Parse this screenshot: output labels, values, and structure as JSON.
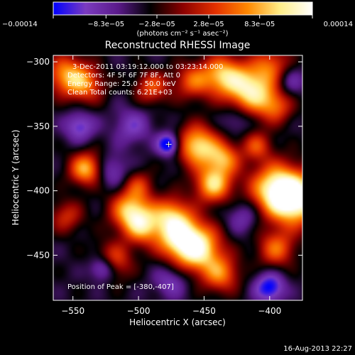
{
  "chart_data": {
    "type": "heatmap",
    "title": "Reconstructed RHESSI Image",
    "xlabel": "Heliocentric X (arcsec)",
    "ylabel": "Heliocentric Y (arcsec)",
    "xlim": [
      -565,
      -375
    ],
    "ylim": [
      -485,
      -295
    ],
    "x_ticks": [
      "−550",
      "−500",
      "−450",
      "−400"
    ],
    "x_tick_values": [
      -550,
      -500,
      -450,
      -400
    ],
    "y_ticks": [
      "−300",
      "−350",
      "−400",
      "−450"
    ],
    "y_tick_values": [
      -300,
      -350,
      -400,
      -450
    ],
    "colorbar": {
      "tick_labels": [
        "−0.00014",
        "−8.3e−05",
        "−2.8e−05",
        "2.8e−05",
        "8.3e−05",
        "0.00014"
      ],
      "tick_values": [
        -0.00014,
        -8.3e-05,
        -2.8e-05,
        2.8e-05,
        8.3e-05,
        0.00014
      ],
      "range": [
        -0.00014,
        0.00014
      ],
      "units": "(photons cm⁻² s⁻¹ asec⁻²)",
      "colors": [
        "#0000ff",
        "#7b3bbf",
        "#5a1a8a",
        "#000000",
        "#8b0000",
        "#e33000",
        "#ff8800",
        "#ffee88",
        "#ffffff"
      ]
    },
    "annotations": {
      "time": "3-Dec-2011 03:19:12.000 to 03:23:14.000",
      "detectors": "Detectors: 4F 5F 6F 7F 8F, Att 0",
      "energy": "Energy Range: 25.0 - 50.0 keV",
      "clean": "Clean     Total counts: 6.21E+03",
      "peak": "Position of Peak = [-380,-407]"
    },
    "peak": {
      "x": -380,
      "y": -407
    },
    "marker": {
      "x": -477,
      "y": -364
    },
    "blobs": [
      {
        "x": -380,
        "y": -407,
        "v": 1.0,
        "s": 14
      },
      {
        "x": -396,
        "y": -398,
        "v": 0.8,
        "s": 14
      },
      {
        "x": -414,
        "y": -322,
        "v": 0.9,
        "s": 13
      },
      {
        "x": -436,
        "y": -310,
        "v": 0.7,
        "s": 11
      },
      {
        "x": -459,
        "y": -315,
        "v": 0.5,
        "s": 10
      },
      {
        "x": -398,
        "y": -302,
        "v": 0.45,
        "s": 10
      },
      {
        "x": -455,
        "y": -365,
        "v": 0.85,
        "s": 11
      },
      {
        "x": -443,
        "y": -395,
        "v": 0.8,
        "s": 10
      },
      {
        "x": -435,
        "y": -375,
        "v": 0.6,
        "s": 9
      },
      {
        "x": -455,
        "y": -445,
        "v": 0.9,
        "s": 13
      },
      {
        "x": -470,
        "y": -435,
        "v": 0.75,
        "s": 12
      },
      {
        "x": -475,
        "y": -418,
        "v": 0.55,
        "s": 10
      },
      {
        "x": -437,
        "y": -465,
        "v": 0.55,
        "s": 10
      },
      {
        "x": -506,
        "y": -415,
        "v": 0.75,
        "s": 11
      },
      {
        "x": -497,
        "y": -428,
        "v": 0.6,
        "s": 10
      },
      {
        "x": -540,
        "y": -383,
        "v": 0.75,
        "s": 9
      },
      {
        "x": -555,
        "y": -310,
        "v": 0.65,
        "s": 11
      },
      {
        "x": -540,
        "y": -318,
        "v": 0.5,
        "s": 10
      },
      {
        "x": -490,
        "y": -320,
        "v": 0.5,
        "s": 9
      },
      {
        "x": -520,
        "y": -455,
        "v": 0.55,
        "s": 10
      },
      {
        "x": -395,
        "y": -445,
        "v": 0.55,
        "s": 10
      },
      {
        "x": -395,
        "y": -335,
        "v": 0.45,
        "s": 9
      },
      {
        "x": -410,
        "y": -365,
        "v": 0.45,
        "s": 8
      },
      {
        "x": -500,
        "y": -395,
        "v": 0.35,
        "s": 8
      },
      {
        "x": -555,
        "y": -420,
        "v": 0.4,
        "s": 9
      },
      {
        "x": -477,
        "y": -364,
        "v": -1.0,
        "s": 6
      },
      {
        "x": -527,
        "y": -460,
        "v": -0.85,
        "s": 7
      },
      {
        "x": -400,
        "y": -475,
        "v": -0.8,
        "s": 8
      },
      {
        "x": -545,
        "y": -350,
        "v": -0.6,
        "s": 8
      },
      {
        "x": -505,
        "y": -350,
        "v": -0.45,
        "s": 10
      },
      {
        "x": -520,
        "y": -385,
        "v": -0.45,
        "s": 9
      },
      {
        "x": -475,
        "y": -470,
        "v": -0.45,
        "s": 9
      },
      {
        "x": -420,
        "y": -420,
        "v": -0.4,
        "s": 9
      },
      {
        "x": -385,
        "y": -315,
        "v": -0.4,
        "s": 8
      },
      {
        "x": -425,
        "y": -345,
        "v": -0.35,
        "s": 8
      }
    ]
  },
  "footer": {
    "timestamp": "16-Aug-2013 22:27"
  }
}
